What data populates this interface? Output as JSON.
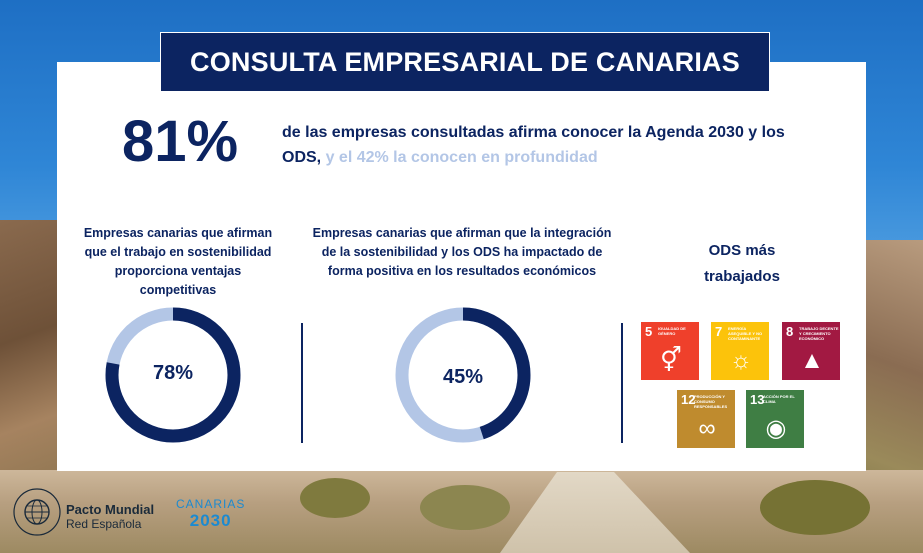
{
  "title": "CONSULTA EMPRESARIAL DE CANARIAS",
  "headline": {
    "percent": "81%",
    "text_dark": "de las empresas consultadas afirma conocer la Agenda 2030 y los ODS,",
    "text_light": " y el 42% la conocen en profundidad"
  },
  "stats": [
    {
      "caption": "Empresas canarias que afirman que el trabajo en sostenibilidad proporciona ventajas competitivas",
      "value_label": "78%",
      "fraction": 0.78
    },
    {
      "caption": "Empresas canarias que afirman que la integración de la sostenibilidad y los ODS ha impactado de forma positiva en los resultados económicos",
      "value_label": "45%",
      "fraction": 0.45
    }
  ],
  "colors": {
    "navy": "#0c2461",
    "donut_track": "#b3c6e6"
  },
  "ods": {
    "title": "ODS más trabajados",
    "goals": [
      {
        "number": "5",
        "text": "Igualdad de género",
        "color": "#ef402b",
        "icon": "gender-equality-icon",
        "glyph": "⚥"
      },
      {
        "number": "7",
        "text": "Energía asequible y no contaminante",
        "color": "#fcc30b",
        "icon": "sun-icon",
        "glyph": "☼"
      },
      {
        "number": "8",
        "text": "Trabajo decente y crecimiento económico",
        "color": "#a21942",
        "icon": "growth-chart-icon",
        "glyph": "▲"
      },
      {
        "number": "12",
        "text": "Producción y consumo responsables",
        "color": "#bf8b2e",
        "icon": "infinity-icon",
        "glyph": "∞"
      },
      {
        "number": "13",
        "text": "Acción por el clima",
        "color": "#3f7e44",
        "icon": "eye-earth-icon",
        "glyph": "◉"
      }
    ]
  },
  "footer": {
    "pacto_title": "Pacto Mundial",
    "pacto_sub": "Red Española",
    "canarias_top": "CANARIAS",
    "canarias_year": "2030"
  }
}
